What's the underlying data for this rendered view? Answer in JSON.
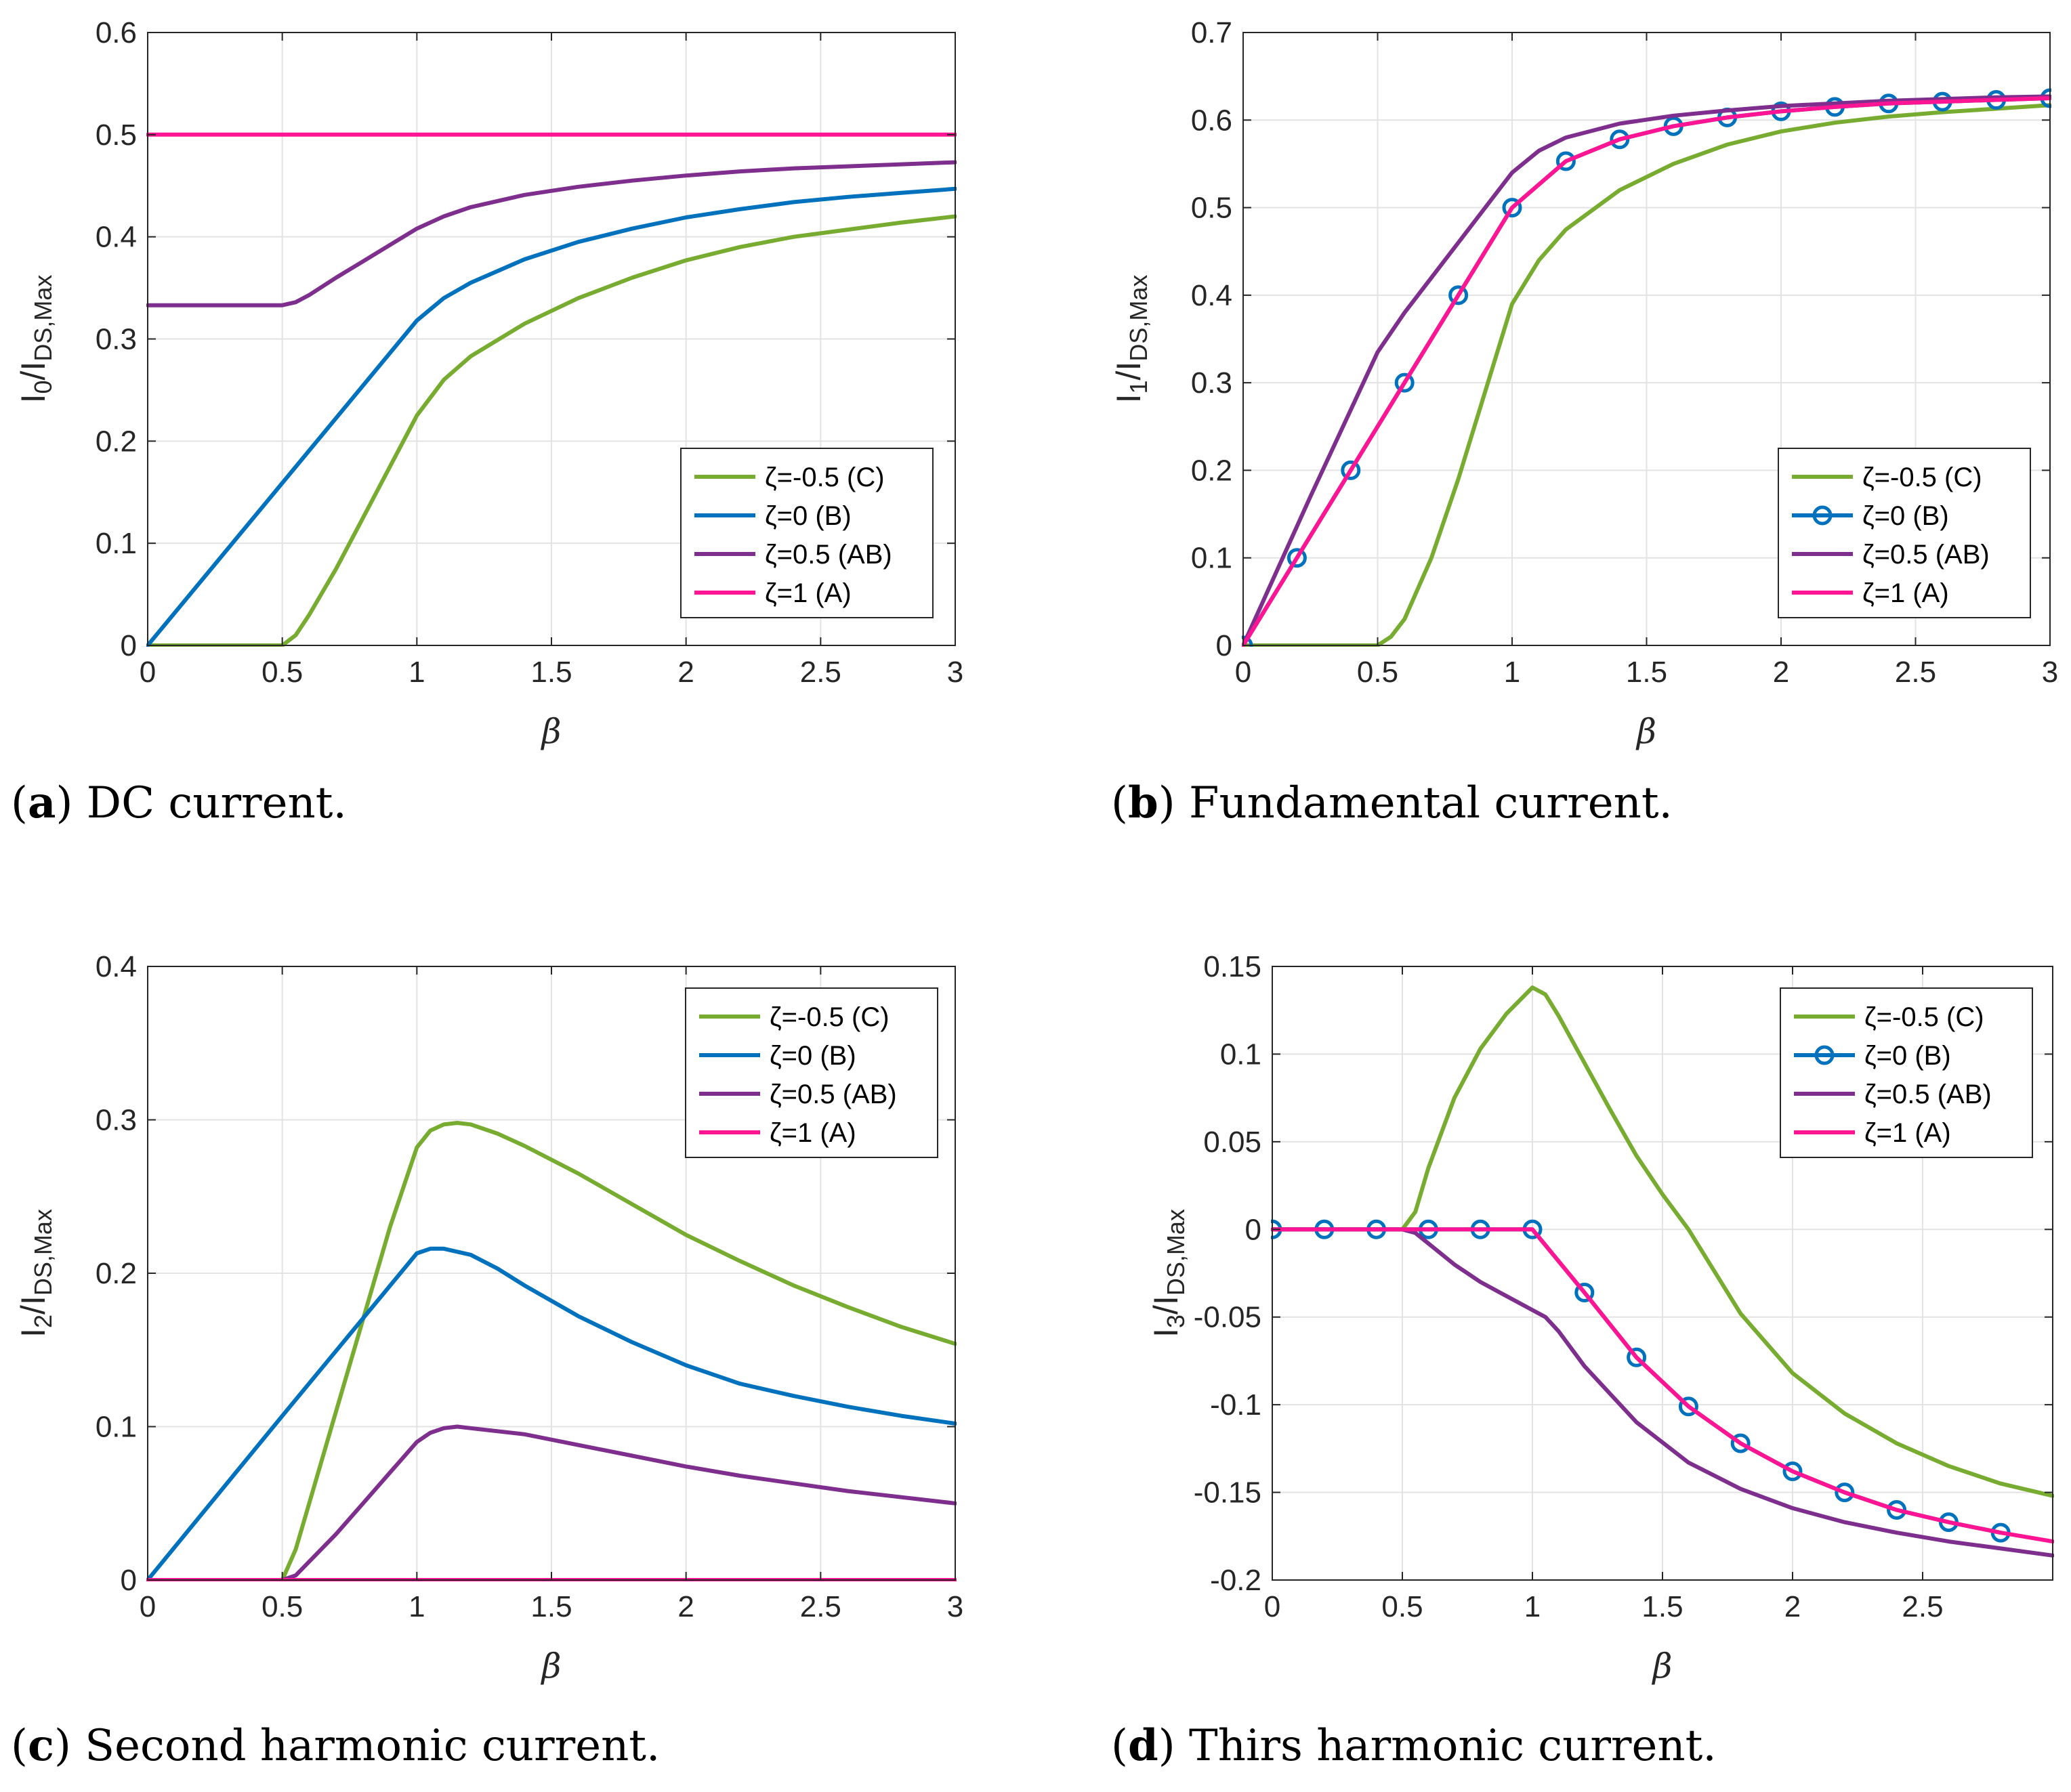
{
  "chart_data": [
    {
      "type": "line",
      "id": "a",
      "caption_letter": "a",
      "caption_text": "DC current.",
      "xlabel": "β",
      "ylabel_main": "I",
      "ylabel_sub1": "0",
      "ylabel_mid": "/I",
      "ylabel_sub2": "DS,Max",
      "xlim": [
        0,
        3
      ],
      "ylim": [
        0,
        0.6
      ],
      "xticks": [
        0,
        0.5,
        1,
        1.5,
        2,
        2.5,
        3
      ],
      "xtick_labels": [
        "0",
        "0.5",
        "1",
        "1.5",
        "2",
        "2.5",
        "3"
      ],
      "yticks": [
        0,
        0.1,
        0.2,
        0.3,
        0.4,
        0.5,
        0.6
      ],
      "ytick_labels": [
        "0",
        "0.1",
        "0.2",
        "0.3",
        "0.4",
        "0.5",
        "0.6"
      ],
      "grid": true,
      "legend_position": "bottom-right",
      "series": [
        {
          "name": "ζ=-0.5 (C)",
          "color": "#77AC30",
          "markers": false,
          "x": [
            0,
            0.5,
            0.55,
            0.6,
            0.7,
            0.8,
            0.9,
            1.0,
            1.1,
            1.2,
            1.4,
            1.6,
            1.8,
            2.0,
            2.2,
            2.4,
            2.6,
            2.8,
            3.0
          ],
          "y": [
            0,
            0,
            0.01,
            0.03,
            0.075,
            0.125,
            0.175,
            0.225,
            0.26,
            0.283,
            0.315,
            0.34,
            0.36,
            0.377,
            0.39,
            0.4,
            0.407,
            0.414,
            0.42
          ]
        },
        {
          "name": "ζ=0 (B)",
          "color": "#0072BD",
          "markers": false,
          "x": [
            0,
            0.5,
            1.0,
            1.1,
            1.2,
            1.4,
            1.6,
            1.8,
            2.0,
            2.2,
            2.4,
            2.6,
            2.8,
            3.0
          ],
          "y": [
            0,
            0.159,
            0.318,
            0.34,
            0.355,
            0.378,
            0.395,
            0.408,
            0.419,
            0.427,
            0.434,
            0.439,
            0.443,
            0.447
          ]
        },
        {
          "name": "ζ=0.5 (AB)",
          "color": "#7E2F8E",
          "markers": false,
          "x": [
            0,
            0.5,
            0.55,
            0.6,
            0.7,
            0.8,
            0.9,
            1.0,
            1.1,
            1.2,
            1.4,
            1.6,
            1.8,
            2.0,
            2.2,
            2.4,
            2.6,
            2.8,
            3.0
          ],
          "y": [
            0.333,
            0.333,
            0.336,
            0.343,
            0.36,
            0.376,
            0.392,
            0.408,
            0.42,
            0.429,
            0.441,
            0.449,
            0.455,
            0.46,
            0.464,
            0.467,
            0.469,
            0.471,
            0.473
          ]
        },
        {
          "name": "ζ=1 (A)",
          "color": "#FF1493",
          "markers": false,
          "x": [
            0,
            3
          ],
          "y": [
            0.5,
            0.5
          ]
        }
      ]
    },
    {
      "type": "line",
      "id": "b",
      "caption_letter": "b",
      "caption_text": "Fundamental current.",
      "xlabel": "β",
      "ylabel_main": "I",
      "ylabel_sub1": "1",
      "ylabel_mid": "/I",
      "ylabel_sub2": "DS,Max",
      "xlim": [
        0,
        3
      ],
      "ylim": [
        0,
        0.7
      ],
      "xticks": [
        0,
        0.5,
        1,
        1.5,
        2,
        2.5,
        3
      ],
      "xtick_labels": [
        "0",
        "0.5",
        "1",
        "1.5",
        "2",
        "2.5",
        "3"
      ],
      "yticks": [
        0,
        0.1,
        0.2,
        0.3,
        0.4,
        0.5,
        0.6,
        0.7
      ],
      "ytick_labels": [
        "0",
        "0.1",
        "0.2",
        "0.3",
        "0.4",
        "0.5",
        "0.6",
        "0.7"
      ],
      "grid": true,
      "legend_position": "bottom-right",
      "series": [
        {
          "name": "ζ=-0.5 (C)",
          "color": "#77AC30",
          "markers": false,
          "x": [
            0,
            0.5,
            0.55,
            0.6,
            0.7,
            0.8,
            0.9,
            1.0,
            1.1,
            1.2,
            1.4,
            1.6,
            1.8,
            2.0,
            2.2,
            2.4,
            2.6,
            2.8,
            3.0
          ],
          "y": [
            0,
            0,
            0.01,
            0.03,
            0.1,
            0.19,
            0.29,
            0.39,
            0.44,
            0.475,
            0.52,
            0.55,
            0.572,
            0.587,
            0.597,
            0.604,
            0.609,
            0.613,
            0.617
          ]
        },
        {
          "name": "ζ=0 (B)",
          "color": "#0072BD",
          "markers": true,
          "x": [
            0,
            0.2,
            0.4,
            0.6,
            0.8,
            1.0,
            1.2,
            1.4,
            1.6,
            1.8,
            2.0,
            2.2,
            2.4,
            2.6,
            2.8,
            3.0
          ],
          "y": [
            0,
            0.1,
            0.2,
            0.3,
            0.4,
            0.5,
            0.553,
            0.578,
            0.593,
            0.603,
            0.61,
            0.615,
            0.619,
            0.621,
            0.623,
            0.625
          ]
        },
        {
          "name": "ζ=0.5 (AB)",
          "color": "#7E2F8E",
          "markers": false,
          "x": [
            0,
            0.25,
            0.5,
            0.6,
            0.7,
            0.8,
            0.9,
            1.0,
            1.1,
            1.2,
            1.4,
            1.6,
            1.8,
            2.0,
            2.2,
            2.4,
            2.6,
            2.8,
            3.0
          ],
          "y": [
            0,
            0.17,
            0.335,
            0.38,
            0.42,
            0.46,
            0.5,
            0.54,
            0.565,
            0.58,
            0.596,
            0.605,
            0.611,
            0.616,
            0.619,
            0.622,
            0.624,
            0.626,
            0.627
          ]
        },
        {
          "name": "ζ=1 (A)",
          "color": "#FF1493",
          "markers": false,
          "x": [
            0,
            0.2,
            0.4,
            0.6,
            0.8,
            1.0,
            1.2,
            1.4,
            1.6,
            1.8,
            2.0,
            2.2,
            2.4,
            2.6,
            2.8,
            3.0
          ],
          "y": [
            0,
            0.1,
            0.2,
            0.3,
            0.4,
            0.5,
            0.553,
            0.578,
            0.593,
            0.603,
            0.61,
            0.615,
            0.619,
            0.621,
            0.623,
            0.625
          ]
        }
      ]
    },
    {
      "type": "line",
      "id": "c",
      "caption_letter": "c",
      "caption_text": "Second harmonic current.",
      "xlabel": "β",
      "ylabel_main": "I",
      "ylabel_sub1": "2",
      "ylabel_mid": "/I",
      "ylabel_sub2": "DS,Max",
      "xlim": [
        0,
        3
      ],
      "ylim": [
        0,
        0.4
      ],
      "xticks": [
        0,
        0.5,
        1,
        1.5,
        2,
        2.5,
        3
      ],
      "xtick_labels": [
        "0",
        "0.5",
        "1",
        "1.5",
        "2",
        "2.5",
        "3"
      ],
      "yticks": [
        0,
        0.1,
        0.2,
        0.3,
        0.4
      ],
      "ytick_labels": [
        "0",
        "0.1",
        "0.2",
        "0.3",
        "0.4"
      ],
      "grid": true,
      "legend_position": "top-right",
      "series": [
        {
          "name": "ζ=-0.5 (C)",
          "color": "#77AC30",
          "markers": false,
          "x": [
            0.5,
            0.55,
            0.6,
            0.7,
            0.8,
            0.9,
            1.0,
            1.05,
            1.1,
            1.15,
            1.2,
            1.3,
            1.4,
            1.6,
            1.8,
            2.0,
            2.2,
            2.4,
            2.6,
            2.8,
            3.0
          ],
          "y": [
            0,
            0.02,
            0.05,
            0.11,
            0.17,
            0.23,
            0.282,
            0.293,
            0.297,
            0.298,
            0.297,
            0.291,
            0.283,
            0.265,
            0.245,
            0.225,
            0.208,
            0.192,
            0.178,
            0.165,
            0.154
          ]
        },
        {
          "name": "ζ=0 (B)",
          "color": "#0072BD",
          "markers": false,
          "x": [
            0,
            0.5,
            1.0,
            1.05,
            1.1,
            1.2,
            1.3,
            1.4,
            1.6,
            1.8,
            2.0,
            2.2,
            2.4,
            2.6,
            2.8,
            3.0
          ],
          "y": [
            0,
            0.107,
            0.213,
            0.216,
            0.216,
            0.212,
            0.203,
            0.192,
            0.172,
            0.155,
            0.14,
            0.128,
            0.12,
            0.113,
            0.107,
            0.102
          ]
        },
        {
          "name": "ζ=0.5 (AB)",
          "color": "#7E2F8E",
          "markers": false,
          "x": [
            0.5,
            0.55,
            0.6,
            0.7,
            0.8,
            0.9,
            1.0,
            1.05,
            1.1,
            1.15,
            1.2,
            1.4,
            1.6,
            1.8,
            2.0,
            2.2,
            2.4,
            2.6,
            2.8,
            3.0
          ],
          "y": [
            0,
            0.003,
            0.012,
            0.03,
            0.05,
            0.07,
            0.09,
            0.096,
            0.099,
            0.1,
            0.099,
            0.095,
            0.088,
            0.081,
            0.074,
            0.068,
            0.063,
            0.058,
            0.054,
            0.05
          ]
        },
        {
          "name": "ζ=1 (A)",
          "color": "#FF1493",
          "markers": false,
          "x": [
            0,
            3
          ],
          "y": [
            0,
            0
          ]
        }
      ]
    },
    {
      "type": "line",
      "id": "d",
      "caption_letter": "d",
      "caption_text": "Thirs harmonic current.",
      "xlabel": "β",
      "ylabel_main": "I",
      "ylabel_sub1": "3",
      "ylabel_mid": "/I",
      "ylabel_sub2": "DS,Max",
      "xlim": [
        0,
        3
      ],
      "ylim": [
        -0.2,
        0.15
      ],
      "xticks": [
        0,
        0.5,
        1,
        1.5,
        2,
        2.5
      ],
      "xtick_labels": [
        "0",
        "0.5",
        "1",
        "1.5",
        "2",
        "2.5"
      ],
      "yticks": [
        -0.2,
        -0.15,
        -0.1,
        -0.05,
        0,
        0.05,
        0.1,
        0.15
      ],
      "ytick_labels": [
        "-0.2",
        "-0.15",
        "-0.1",
        "-0.05",
        "0",
        "0.05",
        "0.1",
        "0.15"
      ],
      "grid": true,
      "legend_position": "top-right",
      "series": [
        {
          "name": "ζ=-0.5 (C)",
          "color": "#77AC30",
          "markers": false,
          "x": [
            0,
            0.5,
            0.55,
            0.6,
            0.7,
            0.8,
            0.9,
            1.0,
            1.05,
            1.1,
            1.2,
            1.3,
            1.4,
            1.5,
            1.6,
            1.8,
            2.0,
            2.2,
            2.4,
            2.6,
            2.8,
            3.0
          ],
          "y": [
            0,
            0,
            0.01,
            0.035,
            0.075,
            0.103,
            0.123,
            0.138,
            0.134,
            0.122,
            0.095,
            0.068,
            0.042,
            0.02,
            0,
            -0.048,
            -0.082,
            -0.105,
            -0.122,
            -0.135,
            -0.145,
            -0.152
          ]
        },
        {
          "name": "ζ=0 (B)",
          "color": "#0072BD",
          "markers": true,
          "x": [
            0,
            0.2,
            0.4,
            0.6,
            0.8,
            1.0,
            1.2,
            1.4,
            1.6,
            1.8,
            2.0,
            2.2,
            2.4,
            2.6,
            2.8
          ],
          "y": [
            0,
            0,
            0,
            0,
            0,
            0,
            -0.036,
            -0.073,
            -0.101,
            -0.122,
            -0.138,
            -0.15,
            -0.16,
            -0.167,
            -0.173
          ]
        },
        {
          "name": "ζ=0.5 (AB)",
          "color": "#7E2F8E",
          "markers": false,
          "x": [
            0,
            0.5,
            0.55,
            0.6,
            0.7,
            0.8,
            0.9,
            1.0,
            1.05,
            1.1,
            1.2,
            1.4,
            1.6,
            1.8,
            2.0,
            2.2,
            2.4,
            2.6,
            2.8,
            3.0
          ],
          "y": [
            0,
            0,
            -0.002,
            -0.008,
            -0.02,
            -0.03,
            -0.038,
            -0.046,
            -0.05,
            -0.058,
            -0.078,
            -0.11,
            -0.133,
            -0.148,
            -0.159,
            -0.167,
            -0.173,
            -0.178,
            -0.182,
            -0.186
          ]
        },
        {
          "name": "ζ=1 (A)",
          "color": "#FF1493",
          "markers": false,
          "x": [
            0,
            0.2,
            0.4,
            0.6,
            0.8,
            1.0,
            1.2,
            1.4,
            1.6,
            1.8,
            2.0,
            2.2,
            2.4,
            2.6,
            2.8,
            3.0
          ],
          "y": [
            0,
            0,
            0,
            0,
            0,
            0,
            -0.036,
            -0.073,
            -0.101,
            -0.122,
            -0.138,
            -0.15,
            -0.16,
            -0.167,
            -0.173,
            -0.178
          ]
        }
      ]
    }
  ]
}
